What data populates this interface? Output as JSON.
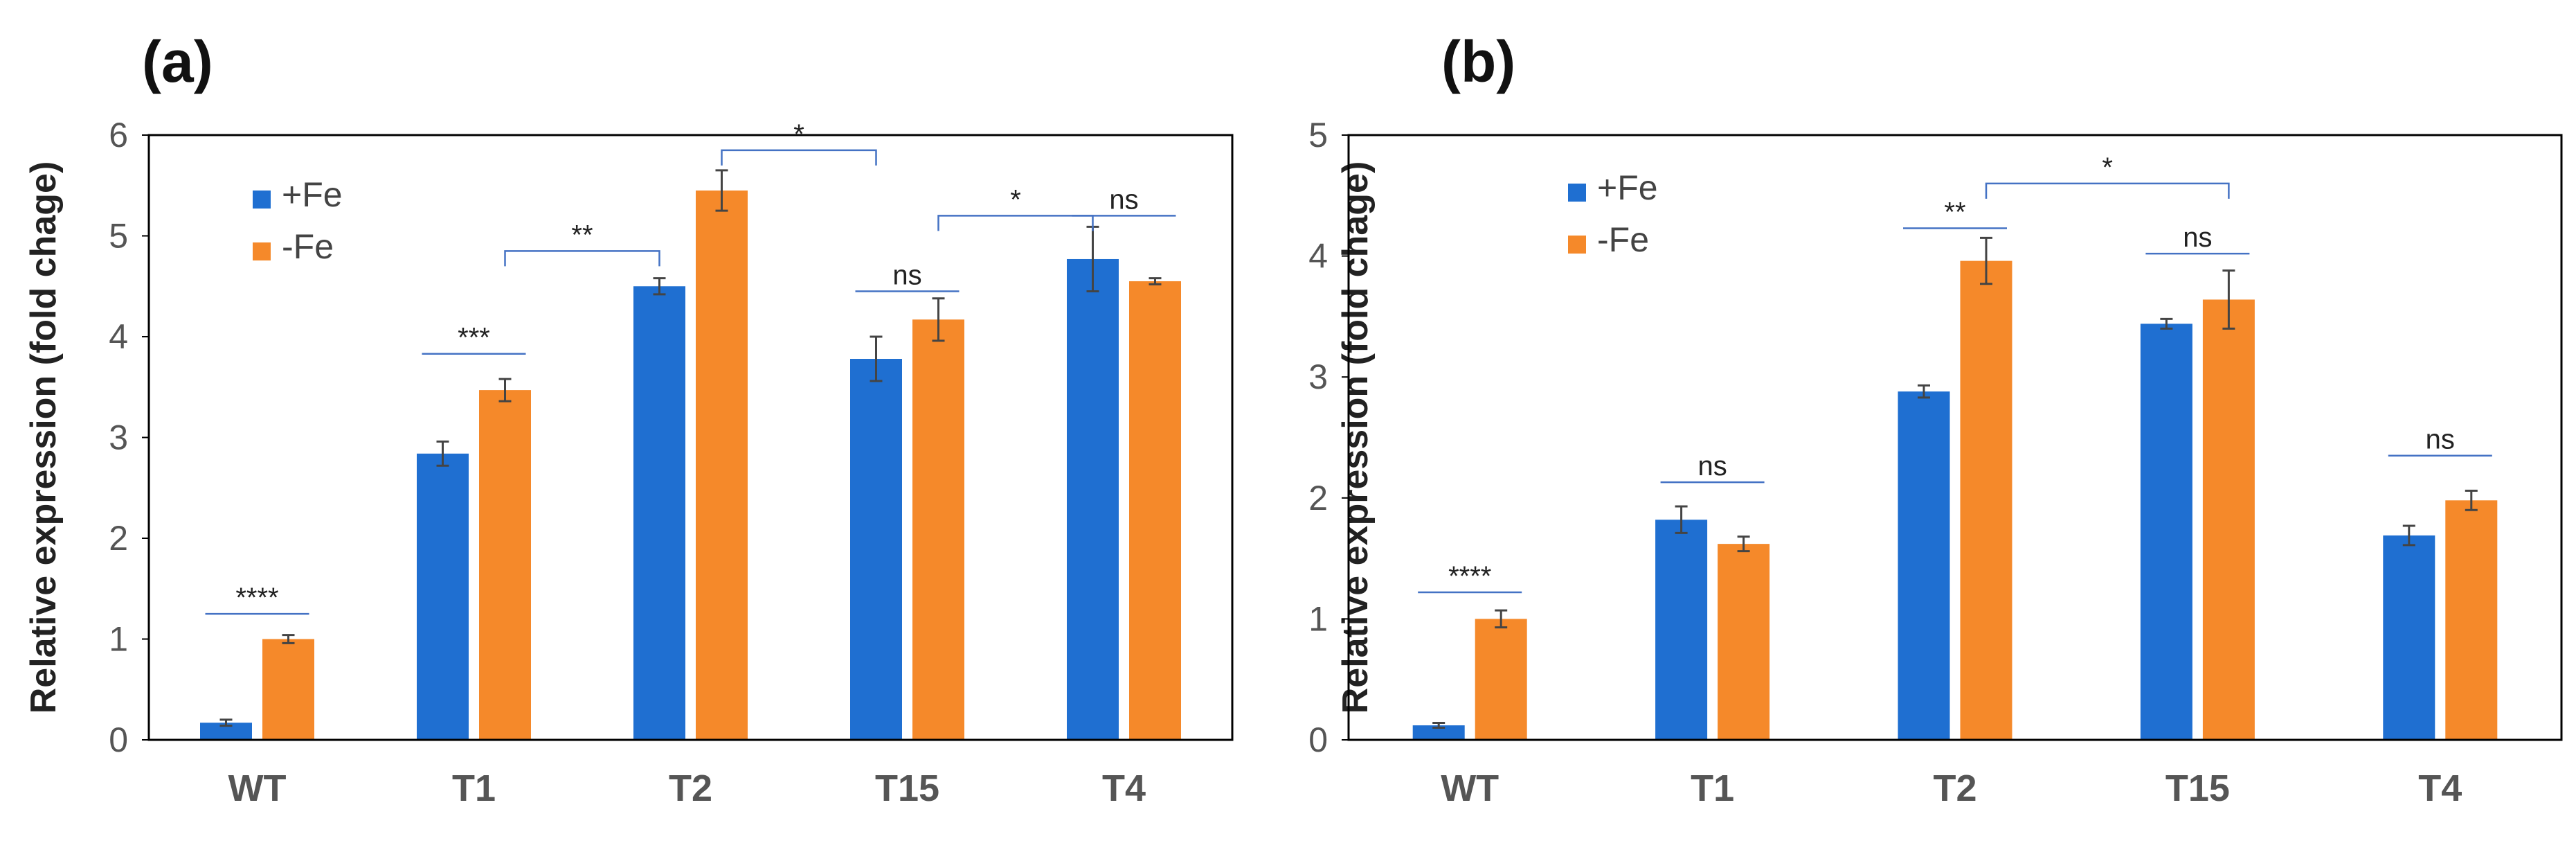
{
  "colors": {
    "fe_plus": "#1F6FD1",
    "fe_minus": "#F5892A",
    "axis": "#000000",
    "bracket": "#4472C4",
    "errbar": "#444444"
  },
  "chart_data": [
    {
      "type": "bar",
      "panel_label": "(a)",
      "ylabel": "Relative expression (fold chage)",
      "xlabel": "",
      "ylim": [
        0,
        6
      ],
      "yticks": [
        0,
        1,
        2,
        3,
        4,
        5,
        6
      ],
      "categories": [
        "WT",
        "T1",
        "T2",
        "T15",
        "T4"
      ],
      "legend_position": "top-left",
      "series": [
        {
          "name": "+Fe",
          "values": [
            0.17,
            2.84,
            4.5,
            3.78,
            4.77
          ],
          "errors": [
            0.03,
            0.12,
            0.08,
            0.22,
            0.32
          ]
        },
        {
          "name": "-Fe",
          "values": [
            1.0,
            3.47,
            5.45,
            4.17,
            4.55
          ],
          "errors": [
            0.04,
            0.11,
            0.2,
            0.21,
            0.03
          ]
        }
      ],
      "significance": [
        {
          "label": "****",
          "from": [
            0,
            0
          ],
          "to": [
            0,
            1
          ],
          "y": 1.25,
          "style": "line"
        },
        {
          "label": "***",
          "from": [
            1,
            0
          ],
          "to": [
            1,
            1
          ],
          "y": 3.83,
          "style": "line"
        },
        {
          "label": "**",
          "from": [
            1,
            1
          ],
          "to": [
            2,
            0
          ],
          "y": 4.85,
          "style": "bracket"
        },
        {
          "label": "*",
          "from": [
            2,
            1
          ],
          "to": [
            3,
            0
          ],
          "y": 5.85,
          "style": "bracket"
        },
        {
          "label": "ns",
          "from": [
            3,
            0
          ],
          "to": [
            3,
            1
          ],
          "y": 4.45,
          "style": "line"
        },
        {
          "label": "*",
          "from": [
            3,
            1
          ],
          "to": [
            4,
            0
          ],
          "y": 5.2,
          "style": "bracket"
        },
        {
          "label": "ns",
          "from": [
            4,
            0
          ],
          "to": [
            4,
            1
          ],
          "y": 5.2,
          "style": "line"
        }
      ]
    },
    {
      "type": "bar",
      "panel_label": "(b)",
      "ylabel": "Relative expression (fold chage)",
      "xlabel": "",
      "ylim": [
        0,
        5
      ],
      "yticks": [
        0,
        1,
        2,
        3,
        4,
        5
      ],
      "categories": [
        "WT",
        "T1",
        "T2",
        "T15",
        "T4"
      ],
      "legend_position": "top-left",
      "series": [
        {
          "name": "+Fe",
          "values": [
            0.12,
            1.82,
            2.88,
            3.44,
            1.69
          ],
          "errors": [
            0.02,
            0.11,
            0.05,
            0.04,
            0.08
          ]
        },
        {
          "name": "-Fe",
          "values": [
            1.0,
            1.62,
            3.96,
            3.64,
            1.98
          ],
          "errors": [
            0.07,
            0.06,
            0.19,
            0.24,
            0.08
          ]
        }
      ],
      "significance": [
        {
          "label": "****",
          "from": [
            0,
            0
          ],
          "to": [
            0,
            1
          ],
          "y": 1.22,
          "style": "line"
        },
        {
          "label": "ns",
          "from": [
            1,
            0
          ],
          "to": [
            1,
            1
          ],
          "y": 2.13,
          "style": "line"
        },
        {
          "label": "**",
          "from": [
            2,
            0
          ],
          "to": [
            2,
            1
          ],
          "y": 4.23,
          "style": "line"
        },
        {
          "label": "*",
          "from": [
            2,
            1
          ],
          "to": [
            3,
            1
          ],
          "y": 4.6,
          "style": "bracket"
        },
        {
          "label": "ns",
          "from": [
            3,
            0
          ],
          "to": [
            3,
            1
          ],
          "y": 4.02,
          "style": "line"
        },
        {
          "label": "ns",
          "from": [
            4,
            0
          ],
          "to": [
            4,
            1
          ],
          "y": 2.35,
          "style": "line"
        }
      ]
    }
  ]
}
